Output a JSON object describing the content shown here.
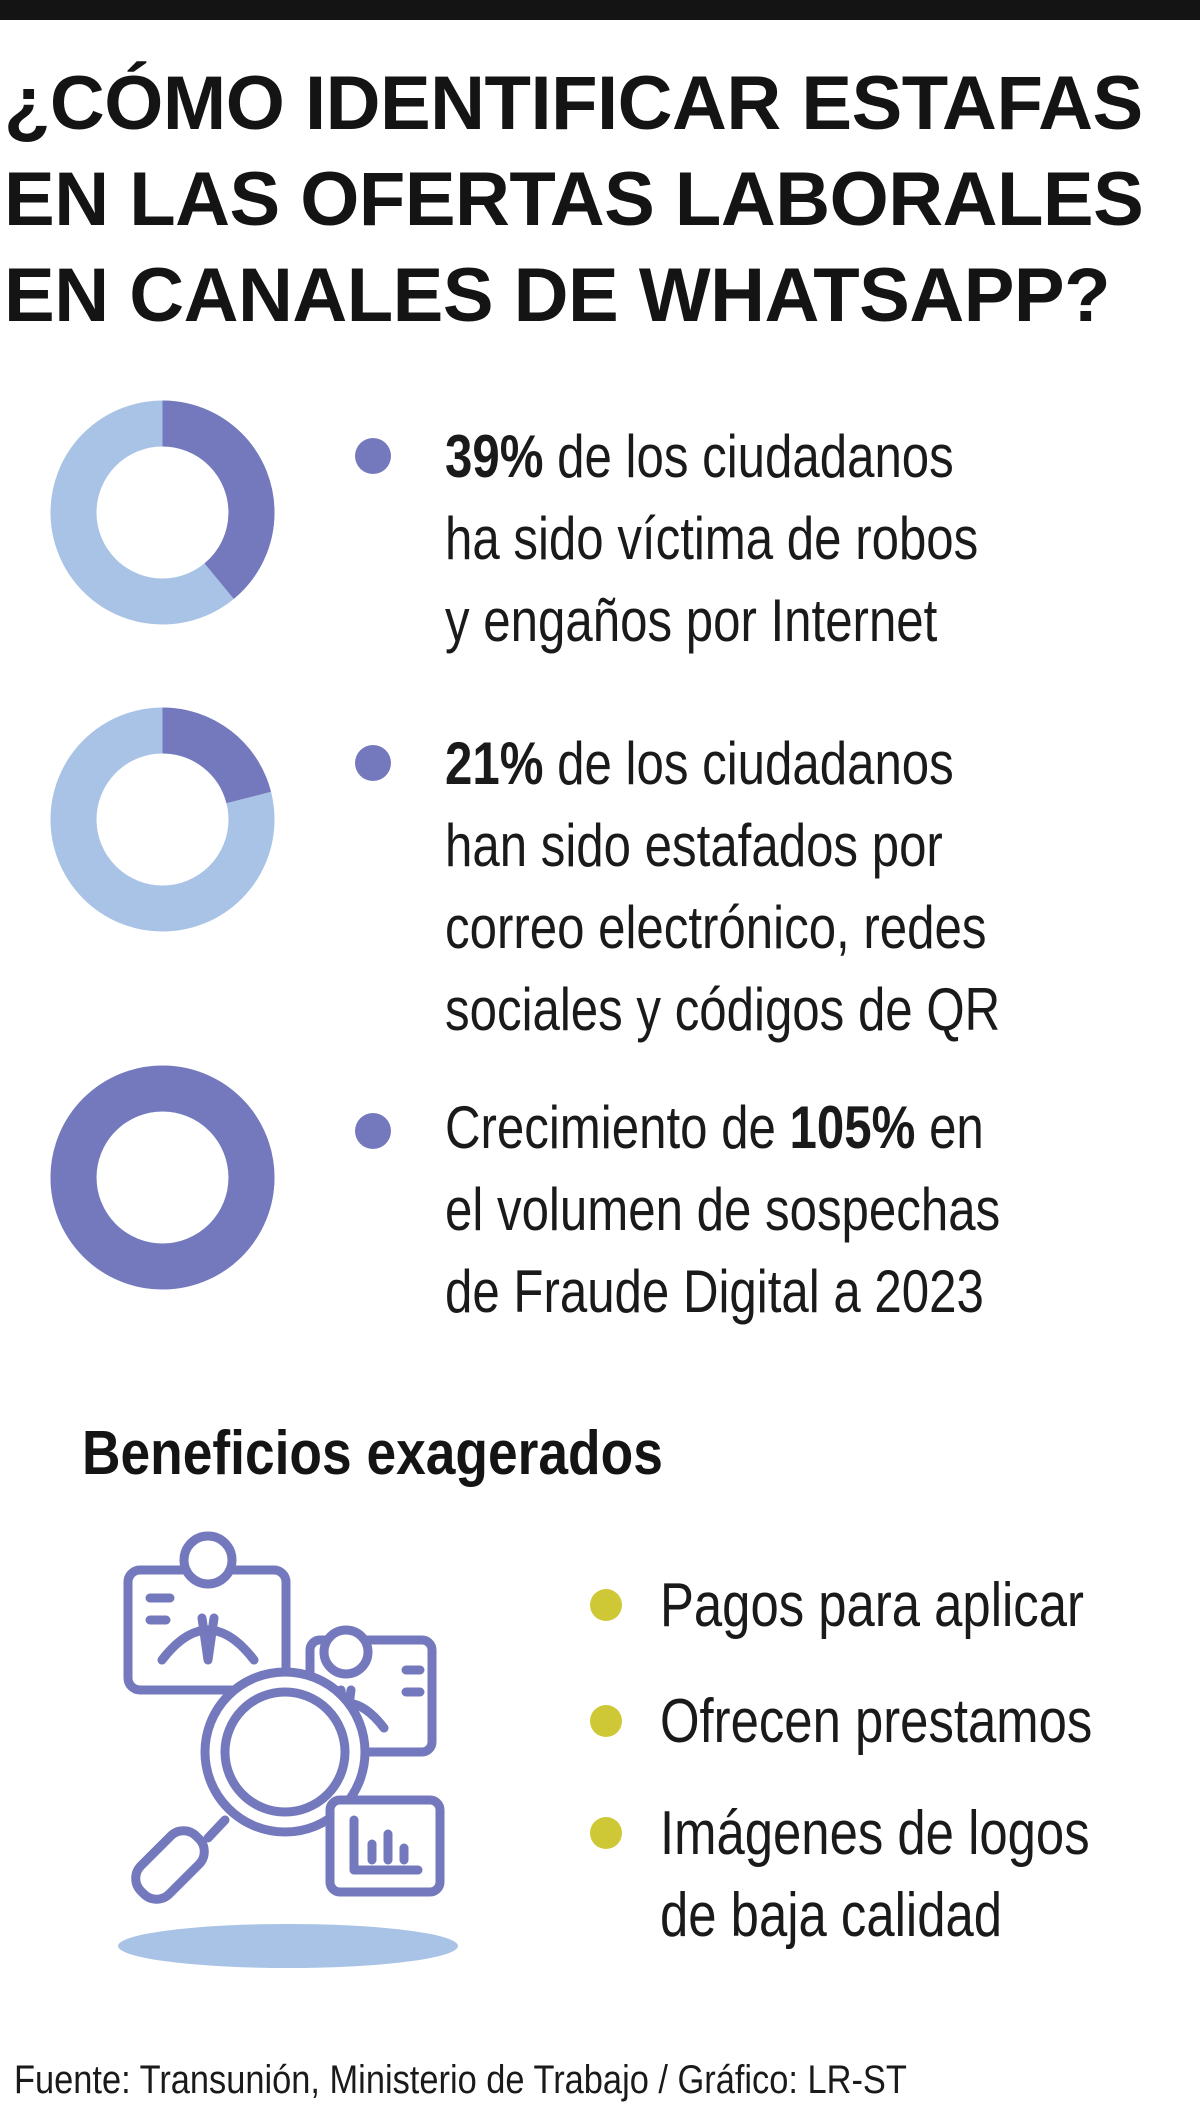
{
  "title_lines": [
    "¿CÓMO IDENTIFICAR ESTAFAS",
    "EN LAS OFERTAS LABORALES",
    "EN CANALES DE WHATSAPP?"
  ],
  "colors": {
    "accent": "#7479bd",
    "ring_light": "#a9c3e6",
    "bullet_yellow": "#cfc836",
    "text": "#1a1a1a"
  },
  "stats": [
    {
      "percent": 39,
      "donut_fill_fraction": 0.39,
      "highlight": "39%",
      "line1_rest": " de los ciudadanos",
      "line2": "ha sido víctima de robos",
      "line3": "y engaños por Internet"
    },
    {
      "percent": 21,
      "donut_fill_fraction": 0.21,
      "highlight": "21%",
      "line1_rest": " de los ciudadanos",
      "line2": "han sido estafados  por",
      "line3": "correo electrónico, redes",
      "line4": "sociales y códigos de QR"
    },
    {
      "percent": 105,
      "donut_fill_fraction": 1.0,
      "line1_pre": "Crecimiento de ",
      "highlight": "105%",
      "line1_post": " en",
      "line2": "el volumen de sospechas",
      "line3": "de Fraude Digital a 2023"
    }
  ],
  "benefits": {
    "title": "Beneficios exagerados",
    "illustration_icon": "job-search-magnifier-icon",
    "items": [
      {
        "line1": "Pagos para aplicar"
      },
      {
        "line1": "Ofrecen prestamos"
      },
      {
        "line1": "Imágenes de logos",
        "line2": "de baja calidad"
      }
    ]
  },
  "source": "Fuente: Transunión, Ministerio de Trabajo / Gráfico: LR-ST"
}
